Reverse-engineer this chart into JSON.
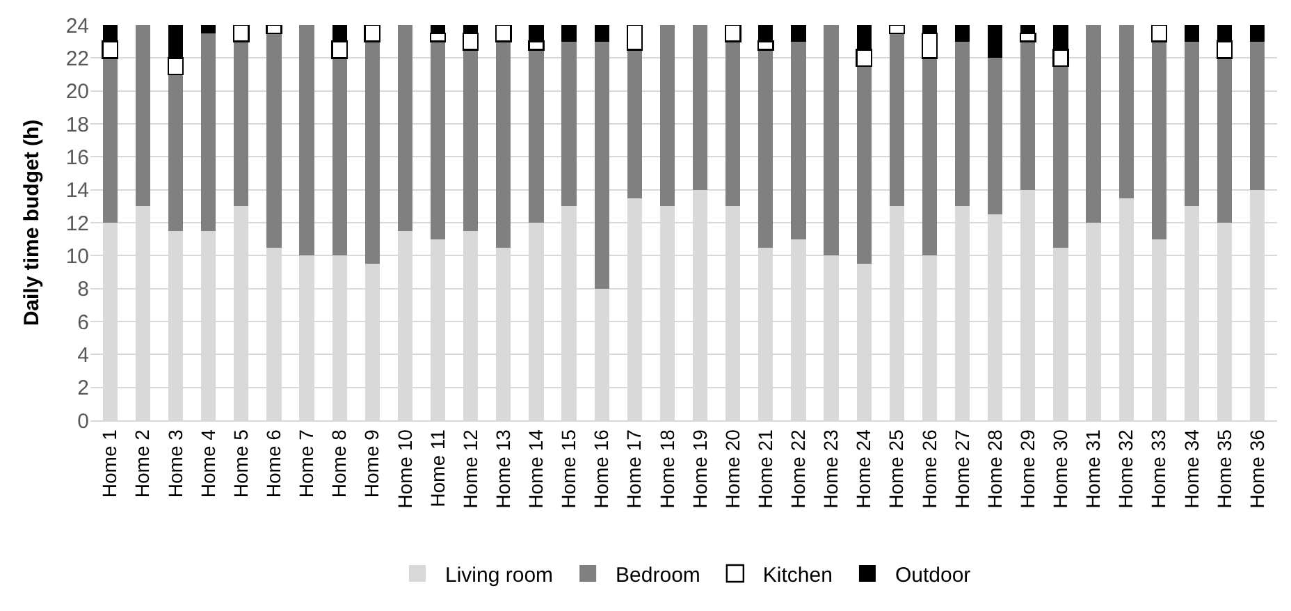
{
  "chart_data": {
    "type": "bar",
    "stacked": true,
    "ylabel": "Daily time budget (h)",
    "categories": [
      "Home 1",
      "Home 2",
      "Home 3",
      "Home 4",
      "Home 5",
      "Home 6",
      "Home 7",
      "Home 8",
      "Home 9",
      "Home 10",
      "Home 11",
      "Home 12",
      "Home 13",
      "Home 14",
      "Home 15",
      "Home 16",
      "Home 17",
      "Home 18",
      "Home 19",
      "Home 20",
      "Home 21",
      "Home 22",
      "Home 23",
      "Home 24",
      "Home 25",
      "Home 26",
      "Home 27",
      "Home 28",
      "Home 29",
      "Home 30",
      "Home 31",
      "Home 32",
      "Home 33",
      "Home 34",
      "Home 35",
      "Home 36"
    ],
    "series": [
      {
        "name": "Living room",
        "color": "#d9d9d9",
        "values": [
          12,
          13,
          11.5,
          11.5,
          13,
          10.5,
          10,
          10,
          9.5,
          11.5,
          11,
          11.5,
          10.5,
          12,
          13,
          8,
          13.5,
          13,
          14,
          13,
          10.5,
          11,
          10,
          9.5,
          13,
          10,
          13,
          12.5,
          14,
          10.5,
          12,
          13.5,
          11,
          13,
          12,
          14
        ]
      },
      {
        "name": "Bedroom",
        "color": "#808080",
        "values": [
          10,
          11,
          9.5,
          12,
          10,
          13,
          14,
          12,
          13.5,
          12.5,
          12,
          11,
          12.5,
          10.5,
          10,
          15,
          9,
          11,
          10,
          10,
          12,
          12,
          14,
          12,
          10.5,
          12,
          10,
          9.5,
          9,
          11,
          12,
          10.5,
          12,
          10,
          10,
          9
        ]
      },
      {
        "name": "Kitchen",
        "color": "#ffffff",
        "values": [
          1,
          0,
          1,
          0,
          1,
          0.5,
          0,
          1,
          1,
          0,
          0.5,
          1,
          1,
          0.5,
          0,
          0,
          1.5,
          0,
          0,
          1,
          0.5,
          0,
          0,
          1,
          0.5,
          1.5,
          0,
          0,
          0.5,
          1,
          0,
          0,
          1,
          0,
          1,
          0
        ]
      },
      {
        "name": "Outdoor",
        "color": "#000000",
        "values": [
          1,
          0,
          2,
          0.5,
          0,
          0,
          0,
          1,
          0,
          0,
          0.5,
          0.5,
          0,
          1,
          1,
          1,
          0,
          0,
          0,
          0,
          1,
          1,
          0,
          1.5,
          0,
          0.5,
          1,
          2,
          0.5,
          1.5,
          0,
          0,
          0,
          1,
          1,
          1
        ]
      }
    ],
    "ylim": [
      0,
      24
    ],
    "yticks": [
      0,
      2,
      4,
      6,
      8,
      10,
      12,
      14,
      16,
      18,
      20,
      22,
      24
    ],
    "grid": "y",
    "legend": "bottom"
  }
}
